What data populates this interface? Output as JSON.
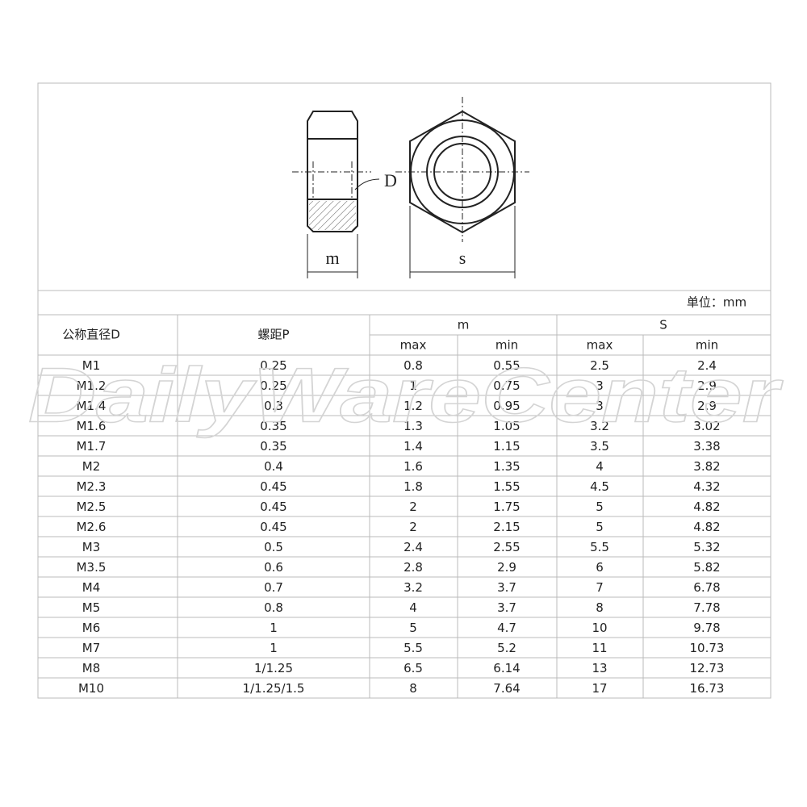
{
  "diagram": {
    "labels": {
      "d": "D",
      "m": "m",
      "s": "s"
    }
  },
  "unit": "单位：mm",
  "watermark": "DailyWareCenter",
  "table": {
    "headers": {
      "diameter": "公称直径D",
      "pitch": "螺距P",
      "m": "m",
      "s": "S",
      "m_max": "max",
      "m_min": "min",
      "s_max": "max",
      "s_min": "min"
    },
    "rows": [
      [
        "M1",
        "0.25",
        "0.8",
        "0.55",
        "2.5",
        "2.4"
      ],
      [
        "M1.2",
        "0.25",
        "1",
        "0.75",
        "3",
        "2.9"
      ],
      [
        "M1.4",
        "0.3",
        "1.2",
        "0.95",
        "3",
        "2.9"
      ],
      [
        "M1.6",
        "0.35",
        "1.3",
        "1.05",
        "3.2",
        "3.02"
      ],
      [
        "M1.7",
        "0.35",
        "1.4",
        "1.15",
        "3.5",
        "3.38"
      ],
      [
        "M2",
        "0.4",
        "1.6",
        "1.35",
        "4",
        "3.82"
      ],
      [
        "M2.3",
        "0.45",
        "1.8",
        "1.55",
        "4.5",
        "4.32"
      ],
      [
        "M2.5",
        "0.45",
        "2",
        "1.75",
        "5",
        "4.82"
      ],
      [
        "M2.6",
        "0.45",
        "2",
        "2.15",
        "5",
        "4.82"
      ],
      [
        "M3",
        "0.5",
        "2.4",
        "2.55",
        "5.5",
        "5.32"
      ],
      [
        "M3.5",
        "0.6",
        "2.8",
        "2.9",
        "6",
        "5.82"
      ],
      [
        "M4",
        "0.7",
        "3.2",
        "3.7",
        "7",
        "6.78"
      ],
      [
        "M5",
        "0.8",
        "4",
        "3.7",
        "8",
        "7.78"
      ],
      [
        "M6",
        "1",
        "5",
        "4.7",
        "10",
        "9.78"
      ],
      [
        "M7",
        "1",
        "5.5",
        "5.2",
        "11",
        "10.73"
      ],
      [
        "M8",
        "1/1.25",
        "6.5",
        "6.14",
        "13",
        "12.73"
      ],
      [
        "M10",
        "1/1.25/1.5",
        "8",
        "7.64",
        "17",
        "16.73"
      ]
    ]
  }
}
